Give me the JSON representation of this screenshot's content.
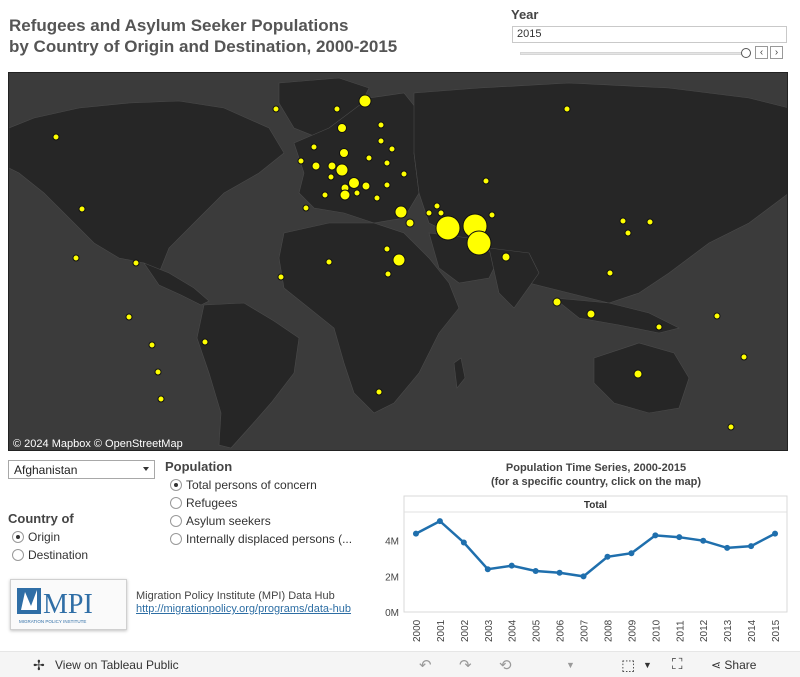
{
  "header": {
    "title_line1": "Refugees and Asylum Seeker Populations",
    "title_line2": "by Country of Origin and Destination, 2000-2015"
  },
  "year_filter": {
    "label": "Year",
    "value": "2015",
    "prev_label": "‹",
    "next_label": "›"
  },
  "map": {
    "attribution": "© 2024 Mapbox  © OpenStreetMap",
    "marker_color": "#ffff00",
    "land_color": "#2b2b2b",
    "water_color": "#3b3b3b"
  },
  "country_select": {
    "value": "Afghanistan"
  },
  "country_of": {
    "title": "Country of",
    "options": [
      {
        "label": "Origin",
        "selected": true
      },
      {
        "label": "Destination",
        "selected": false
      }
    ]
  },
  "population": {
    "title": "Population",
    "options": [
      {
        "label": "Total persons of concern",
        "selected": true
      },
      {
        "label": "Refugees",
        "selected": false
      },
      {
        "label": "Asylum seekers",
        "selected": false
      },
      {
        "label": "Internally displaced persons (...",
        "selected": false
      }
    ]
  },
  "source": {
    "name": "Migration Policy Institute (MPI) Data Hub",
    "link": "http://migrationpolicy.org/programs/data-hub",
    "logo_text": "MPI",
    "logo_sub": "MIGRATION POLICY INSTITUTE"
  },
  "time_series": {
    "title_line1": "Population Time Series, 2000-2015",
    "title_line2": "(for a specific country, click on the map)"
  },
  "chart_data": {
    "type": "line",
    "title": "Total",
    "x": [
      "2000",
      "2001",
      "2002",
      "2003",
      "2004",
      "2005",
      "2006",
      "2007",
      "2008",
      "2009",
      "2010",
      "2011",
      "2012",
      "2013",
      "2014",
      "2015"
    ],
    "series": [
      {
        "name": "Total",
        "values": [
          4.4,
          5.1,
          3.9,
          2.4,
          2.6,
          2.3,
          2.2,
          2.0,
          3.1,
          3.3,
          4.3,
          4.2,
          4.0,
          3.6,
          3.7,
          4.4
        ]
      }
    ],
    "y_ticks": [
      "0M",
      "2M",
      "4M"
    ],
    "ylim": [
      0,
      5.5
    ],
    "line_color": "#1f6fad"
  },
  "footer": {
    "view_label": "View on Tableau Public",
    "share_label": "Share"
  }
}
